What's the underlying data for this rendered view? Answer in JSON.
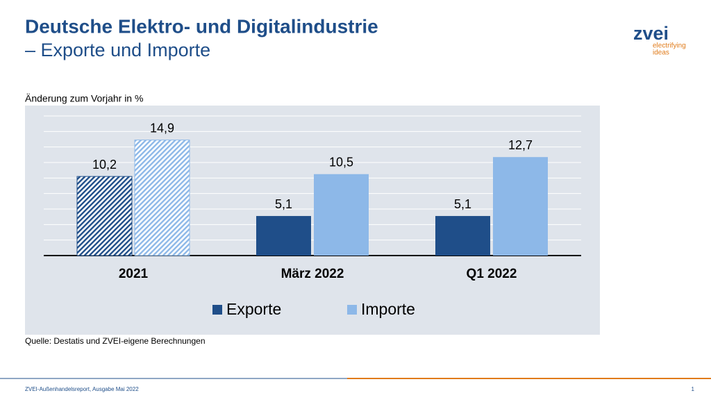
{
  "header": {
    "title": "Deutsche Elektro- und Digitalindustrie",
    "subtitle": "– Exporte und Importe",
    "logo": {
      "name": "zvei",
      "tagline_1": "electrifying",
      "tagline_2": "ideas"
    }
  },
  "chart_data": {
    "type": "bar",
    "y_label": "Änderung zum Vorjahr in %",
    "categories": [
      "2021",
      "März 2022",
      "Q1 2022"
    ],
    "hatched": [
      true,
      false,
      false
    ],
    "series": [
      {
        "name": "Exporte",
        "color": "#1f4e89",
        "values": [
          10.2,
          5.1,
          5.1
        ],
        "value_labels": [
          "10,2",
          "5,1",
          "5,1"
        ]
      },
      {
        "name": "Importe",
        "color": "#8db8e8",
        "values": [
          14.9,
          10.5,
          12.7
        ],
        "value_labels": [
          "14,9",
          "10,5",
          "12,7"
        ]
      }
    ],
    "ylim": [
      0,
      18
    ],
    "yticks": [
      0,
      2,
      4,
      6,
      8,
      10,
      12,
      14,
      16,
      18
    ],
    "grid": true,
    "legend": "bottom",
    "source": "Quelle: Destatis und ZVEI-eigene Berechnungen"
  },
  "footer": {
    "text": "ZVEI-Außenhandelsreport, Ausgabe Mai 2022",
    "page": 1
  }
}
